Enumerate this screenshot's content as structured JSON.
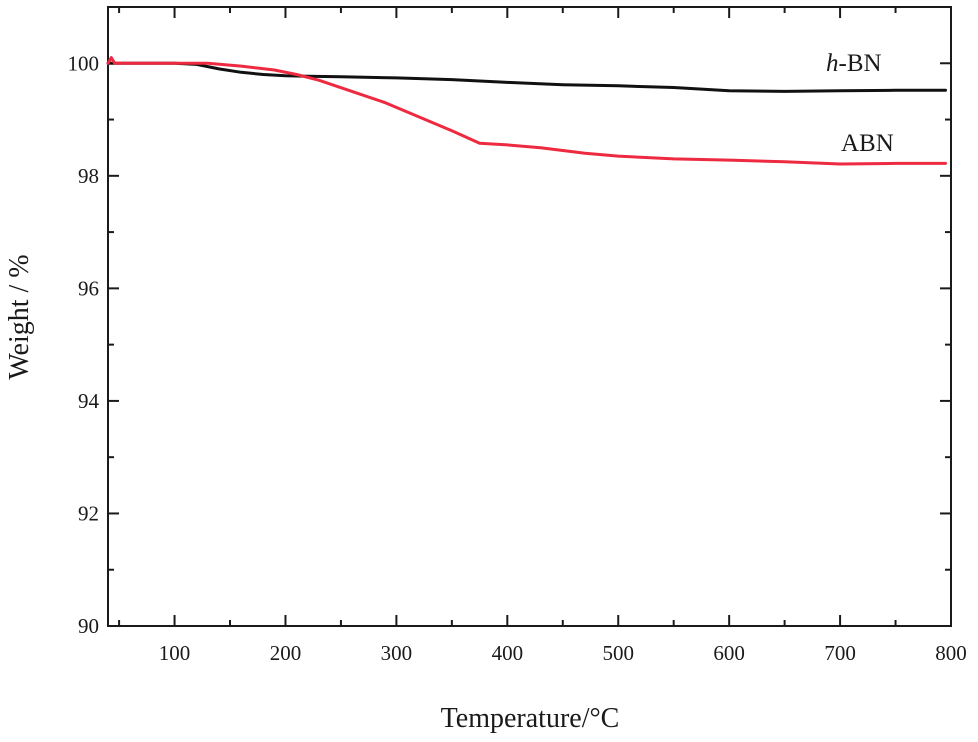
{
  "chart_data": {
    "type": "line",
    "xlabel": "Temperature/°C",
    "ylabel": "Weight / %",
    "xlim": [
      40,
      800
    ],
    "ylim": [
      90,
      101
    ],
    "x_ticks": [
      100,
      200,
      300,
      400,
      500,
      600,
      700,
      800
    ],
    "y_ticks": [
      90,
      92,
      94,
      96,
      98,
      100
    ],
    "grid": false,
    "legend": "none",
    "series": [
      {
        "name": "h-BN",
        "label_prefix": "h",
        "label_suffix": "-BN",
        "color": "#111111",
        "x": [
          40,
          60,
          80,
          100,
          120,
          140,
          160,
          180,
          200,
          220,
          250,
          300,
          350,
          400,
          450,
          500,
          550,
          600,
          650,
          700,
          750,
          795
        ],
        "y": [
          100.0,
          100.0,
          100.0,
          100.0,
          99.98,
          99.9,
          99.84,
          99.8,
          99.78,
          99.77,
          99.76,
          99.74,
          99.71,
          99.66,
          99.62,
          99.6,
          99.57,
          99.51,
          99.5,
          99.51,
          99.52,
          99.52
        ]
      },
      {
        "name": "ABN",
        "label": "ABN",
        "color": "#ee2a40",
        "x": [
          40,
          43,
          46,
          50,
          60,
          80,
          100,
          130,
          160,
          190,
          210,
          230,
          260,
          290,
          320,
          350,
          375,
          400,
          430,
          470,
          500,
          550,
          600,
          650,
          700,
          750,
          795
        ],
        "y": [
          100.0,
          100.1,
          100.0,
          100.0,
          100.0,
          100.0,
          100.0,
          100.0,
          99.95,
          99.88,
          99.8,
          99.7,
          99.5,
          99.3,
          99.05,
          98.8,
          98.58,
          98.55,
          98.5,
          98.4,
          98.35,
          98.3,
          98.28,
          98.25,
          98.21,
          98.22,
          98.22
        ]
      }
    ]
  }
}
